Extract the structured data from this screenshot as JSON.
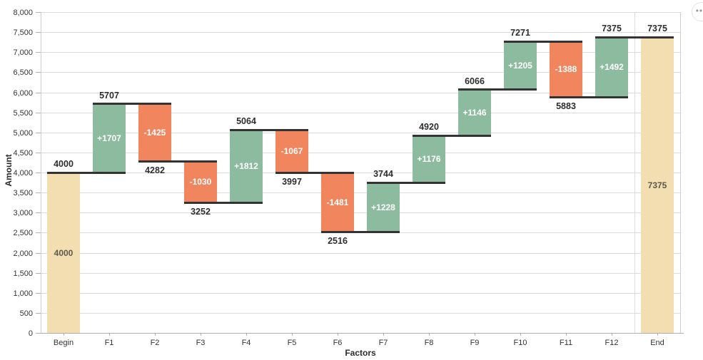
{
  "ui": {
    "menu_button": {
      "icon": "ellipsis-icon",
      "glyph": "•••"
    }
  },
  "chart_data": {
    "type": "bar",
    "variant": "waterfall",
    "title": "",
    "xlabel": "Factors",
    "ylabel": "Amount",
    "ylim": [
      0,
      8000
    ],
    "ytick_step": 500,
    "ytick_labels": [
      "0",
      "500",
      "1,000",
      "1,500",
      "2,000",
      "2,500",
      "3,000",
      "3,500",
      "4,000",
      "4,500",
      "5,000",
      "5,500",
      "6,000",
      "6,500",
      "7,000",
      "7,500",
      "8,000"
    ],
    "grid": "horizontal",
    "legend": "none",
    "categories": [
      "Begin",
      "F1",
      "F2",
      "F3",
      "F4",
      "F5",
      "F6",
      "F7",
      "F8",
      "F9",
      "F10",
      "F11",
      "F12",
      "End"
    ],
    "bars": [
      {
        "category": "Begin",
        "kind": "total",
        "start": 0,
        "end": 4000,
        "change": null,
        "label_inside": "4000",
        "label_outside": "4000",
        "outside_pos": "above"
      },
      {
        "category": "F1",
        "kind": "increase",
        "start": 4000,
        "end": 5707,
        "change": 1707,
        "label_inside": "+1707",
        "label_outside": "5707",
        "outside_pos": "above"
      },
      {
        "category": "F2",
        "kind": "decrease",
        "start": 5707,
        "end": 4282,
        "change": -1425,
        "label_inside": "-1425",
        "label_outside": "4282",
        "outside_pos": "below"
      },
      {
        "category": "F3",
        "kind": "decrease",
        "start": 4282,
        "end": 3252,
        "change": -1030,
        "label_inside": "-1030",
        "label_outside": "3252",
        "outside_pos": "below"
      },
      {
        "category": "F4",
        "kind": "increase",
        "start": 3252,
        "end": 5064,
        "change": 1812,
        "label_inside": "+1812",
        "label_outside": "5064",
        "outside_pos": "above"
      },
      {
        "category": "F5",
        "kind": "decrease",
        "start": 5064,
        "end": 3997,
        "change": -1067,
        "label_inside": "-1067",
        "label_outside": "3997",
        "outside_pos": "below"
      },
      {
        "category": "F6",
        "kind": "decrease",
        "start": 3997,
        "end": 2516,
        "change": -1481,
        "label_inside": "-1481",
        "label_outside": "2516",
        "outside_pos": "below"
      },
      {
        "category": "F7",
        "kind": "increase",
        "start": 2516,
        "end": 3744,
        "change": 1228,
        "label_inside": "+1228",
        "label_outside": "3744",
        "outside_pos": "above"
      },
      {
        "category": "F8",
        "kind": "increase",
        "start": 3744,
        "end": 4920,
        "change": 1176,
        "label_inside": "+1176",
        "label_outside": "4920",
        "outside_pos": "above"
      },
      {
        "category": "F9",
        "kind": "increase",
        "start": 4920,
        "end": 6066,
        "change": 1146,
        "label_inside": "+1146",
        "label_outside": "6066",
        "outside_pos": "above"
      },
      {
        "category": "F10",
        "kind": "increase",
        "start": 6066,
        "end": 7271,
        "change": 1205,
        "label_inside": "+1205",
        "label_outside": "7271",
        "outside_pos": "above"
      },
      {
        "category": "F11",
        "kind": "decrease",
        "start": 7271,
        "end": 5883,
        "change": -1388,
        "label_inside": "-1388",
        "label_outside": "5883",
        "outside_pos": "below"
      },
      {
        "category": "F12",
        "kind": "increase",
        "start": 5883,
        "end": 7375,
        "change": 1492,
        "label_inside": "+1492",
        "label_outside": "7375",
        "outside_pos": "above"
      },
      {
        "category": "End",
        "kind": "total",
        "start": 0,
        "end": 7375,
        "change": null,
        "label_inside": "7375",
        "label_outside": "7375",
        "outside_pos": "above"
      }
    ],
    "colors": {
      "increase": "#8CBBA0",
      "decrease": "#F0855E",
      "total": "#F3DEB1",
      "step_line": "#333333",
      "grid": "#DCDCDC",
      "axis": "#ADADAD",
      "axis_border": "#CFCFCF",
      "label": "#2E2E2E",
      "tick_label": "#333333",
      "inside_label": "#FFFFFF",
      "total_inside_label": "#5C584C"
    }
  }
}
